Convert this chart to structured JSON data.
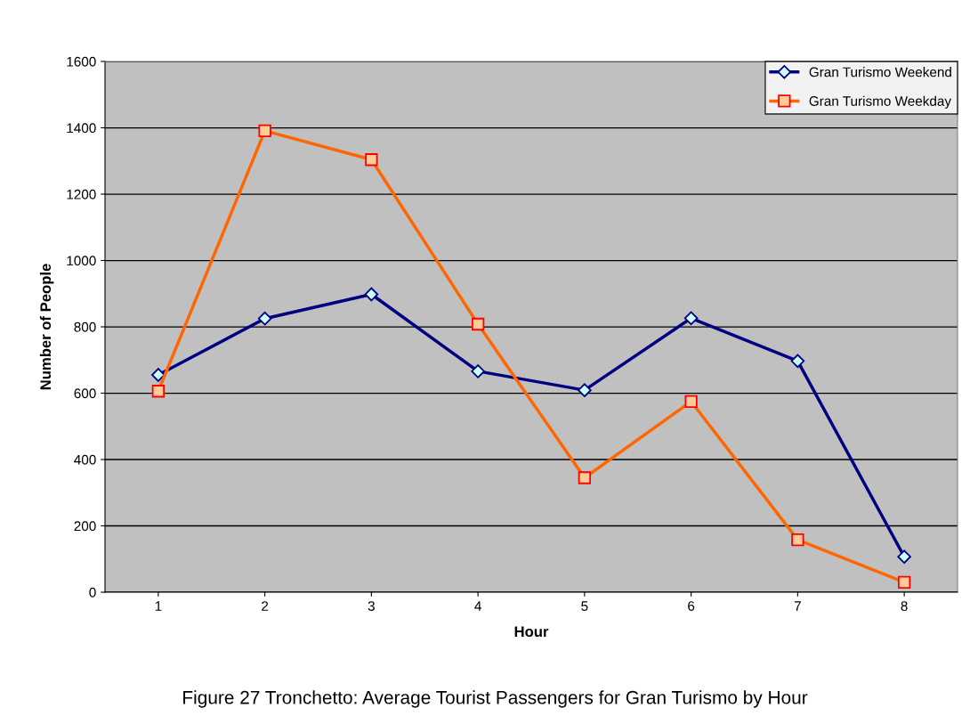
{
  "chart_data": {
    "type": "line",
    "xlabel": "Hour",
    "ylabel": "Number of People",
    "categories": [
      "1",
      "2",
      "3",
      "4",
      "5",
      "6",
      "7",
      "8"
    ],
    "series": [
      {
        "name": "Gran Turismo Weekend",
        "color": "#000080",
        "marker": "diamond",
        "values": [
          655,
          825,
          898,
          666,
          609,
          826,
          697,
          107
        ]
      },
      {
        "name": "Gran Turismo Weekday",
        "color": "#ff6600",
        "marker": "square",
        "values": [
          606,
          1391,
          1304,
          808,
          345,
          575,
          158,
          30
        ]
      }
    ],
    "ylim": [
      0,
      1600
    ],
    "yticks": [
      0,
      200,
      400,
      600,
      800,
      1000,
      1200,
      1400,
      1600
    ],
    "grid": "y",
    "legend": "top right",
    "line_style": "solid",
    "annotations": [
      "Figure 27 Tronchetto: Average Tourist Passengers for Gran Turismo by Hour"
    ]
  }
}
